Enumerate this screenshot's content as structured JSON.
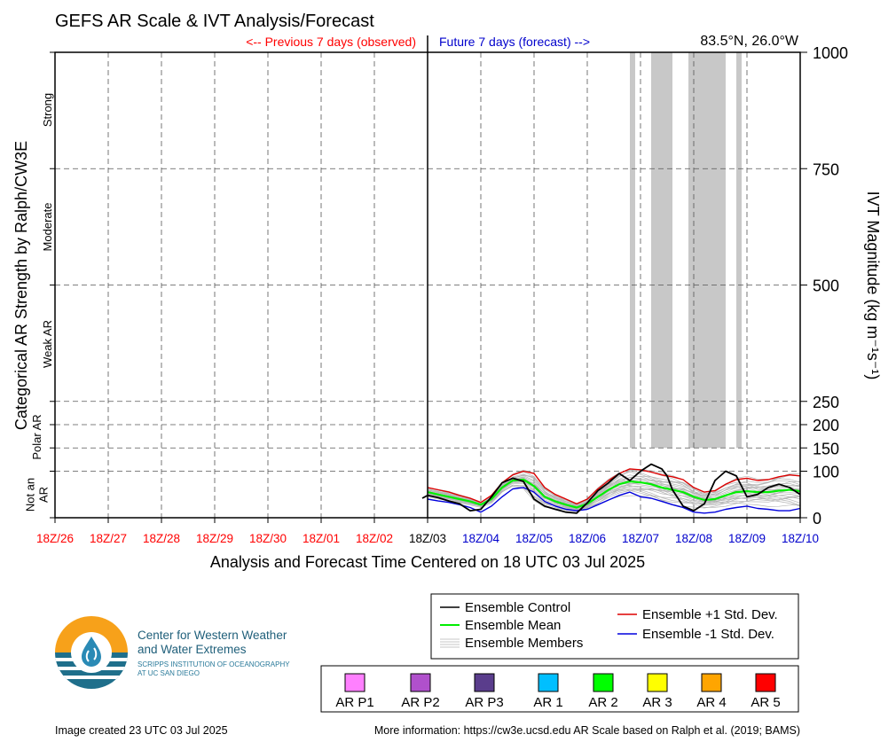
{
  "title": "GEFS AR Scale & IVT Analysis/Forecast",
  "previous_label": "<-- Previous 7 days (observed)",
  "future_label": "Future 7 days (forecast) -->",
  "location": "83.5°N, 26.0°W",
  "xlabel": "Analysis and Forecast Time Centered on 18 UTC 03 Jul 2025",
  "ylabel_left": "Categorical AR Strength by Ralph/CW3E",
  "ylabel_right": "IVT Magnitude (kg m⁻¹s⁻¹)",
  "category_labels": [
    "Strong",
    "Moderate",
    "Weak AR",
    "Polar AR",
    "Not an AR"
  ],
  "legend": {
    "control": "Ensemble Control",
    "mean": "Ensemble Mean",
    "members": "Ensemble Members",
    "plus_sd": "Ensemble +1 Std. Dev.",
    "minus_sd": "Ensemble -1 Std. Dev."
  },
  "ar_scale": [
    {
      "label": "AR P1",
      "color": "#ff80ff"
    },
    {
      "label": "AR P2",
      "color": "#b050cc"
    },
    {
      "label": "AR P3",
      "color": "#5a3d8c"
    },
    {
      "label": "AR 1",
      "color": "#00bfff"
    },
    {
      "label": "AR 2",
      "color": "#00ff00"
    },
    {
      "label": "AR 3",
      "color": "#ffff00"
    },
    {
      "label": "AR 4",
      "color": "#ffa500"
    },
    {
      "label": "AR 5",
      "color": "#ff0000"
    }
  ],
  "logo": {
    "line1": "Center for Western Weather",
    "line2": "and Water Extremes",
    "line3": "SCRIPPS INSTITUTION OF OCEANOGRAPHY",
    "line4": "AT UC SAN DIEGO"
  },
  "footer_left": "Image created 23 UTC 03 Jul 2025",
  "footer_right": "More information: https://cw3e.ucsd.edu AR Scale based on Ralph et al. (2019; BAMS)",
  "colors": {
    "control": "#000000",
    "mean": "#00ee00",
    "plus_sd": "#dd0000",
    "minus_sd": "#0000dd",
    "members": "#b4b4b4",
    "shading": "#c8c8c8",
    "observed_text": "#ff0000",
    "forecast_text": "#0000cc"
  },
  "chart_data": {
    "type": "line",
    "x_ticks": [
      "18Z/26",
      "18Z/27",
      "18Z/28",
      "18Z/29",
      "18Z/30",
      "18Z/01",
      "18Z/02",
      "18Z/03",
      "18Z/04",
      "18Z/05",
      "18Z/06",
      "18Z/07",
      "18Z/08",
      "18Z/09",
      "18Z/10"
    ],
    "y_ticks": [
      0,
      100,
      150,
      200,
      250,
      500,
      750,
      1000
    ],
    "ylim": [
      0,
      1000
    ],
    "xlim": [
      -7,
      7
    ],
    "grid": true,
    "x_unit": "days relative to 18Z/03",
    "series": [
      {
        "name": "Ensemble Control",
        "x": [
          -0.1,
          0,
          0.2,
          0.4,
          0.6,
          0.8,
          1.0,
          1.2,
          1.4,
          1.6,
          1.8,
          2.0,
          2.2,
          2.4,
          2.6,
          2.8,
          3.0,
          3.2,
          3.4,
          3.6,
          3.8,
          4.0,
          4.2,
          4.4,
          4.5,
          4.6,
          4.8,
          5.0,
          5.2,
          5.4,
          5.6,
          5.8,
          6.0,
          6.2,
          6.4,
          6.6,
          6.8,
          7.0
        ],
        "y": [
          42,
          48,
          43,
          36,
          30,
          15,
          18,
          45,
          75,
          85,
          78,
          40,
          25,
          18,
          12,
          10,
          32,
          58,
          75,
          95,
          80,
          100,
          115,
          105,
          90,
          60,
          25,
          15,
          30,
          80,
          100,
          90,
          45,
          50,
          65,
          72,
          65,
          50
        ]
      },
      {
        "name": "Ensemble Mean",
        "x": [
          0,
          0.2,
          0.4,
          0.6,
          0.8,
          1.0,
          1.2,
          1.4,
          1.6,
          1.8,
          2.0,
          2.2,
          2.4,
          2.6,
          2.8,
          3.0,
          3.2,
          3.4,
          3.6,
          3.8,
          4.0,
          4.2,
          4.4,
          4.6,
          4.8,
          5.0,
          5.2,
          5.4,
          5.6,
          5.8,
          6.0,
          6.2,
          6.4,
          6.6,
          6.8,
          7.0
        ],
        "y": [
          55,
          50,
          45,
          40,
          35,
          28,
          40,
          65,
          80,
          82,
          68,
          45,
          35,
          28,
          22,
          30,
          45,
          60,
          72,
          78,
          76,
          72,
          65,
          60,
          55,
          45,
          38,
          40,
          48,
          55,
          57,
          55,
          55,
          58,
          60,
          57
        ]
      },
      {
        "name": "Ensemble +1 Std. Dev.",
        "x": [
          0,
          0.2,
          0.4,
          0.6,
          0.8,
          1.0,
          1.2,
          1.4,
          1.6,
          1.8,
          2.0,
          2.2,
          2.4,
          2.6,
          2.8,
          3.0,
          3.2,
          3.4,
          3.6,
          3.8,
          4.0,
          4.2,
          4.4,
          4.6,
          4.8,
          5.0,
          5.2,
          5.4,
          5.6,
          5.8,
          6.0,
          6.2,
          6.4,
          6.6,
          6.8,
          7.0
        ],
        "y": [
          65,
          60,
          55,
          48,
          42,
          33,
          48,
          75,
          92,
          100,
          95,
          65,
          50,
          40,
          30,
          40,
          62,
          80,
          95,
          105,
          103,
          98,
          92,
          88,
          82,
          65,
          55,
          58,
          72,
          82,
          85,
          80,
          82,
          88,
          92,
          90
        ]
      },
      {
        "name": "Ensemble -1 Std. Dev.",
        "x": [
          0,
          0.2,
          0.4,
          0.6,
          0.8,
          1.0,
          1.2,
          1.4,
          1.6,
          1.8,
          2.0,
          2.2,
          2.4,
          2.6,
          2.8,
          3.0,
          3.2,
          3.4,
          3.6,
          3.8,
          4.0,
          4.2,
          4.4,
          4.6,
          4.8,
          5.0,
          5.2,
          5.4,
          5.6,
          5.8,
          6.0,
          6.2,
          6.4,
          6.6,
          6.8,
          7.0
        ],
        "y": [
          40,
          36,
          33,
          28,
          22,
          12,
          25,
          45,
          62,
          65,
          55,
          35,
          25,
          18,
          15,
          18,
          28,
          38,
          48,
          55,
          45,
          42,
          35,
          28,
          22,
          12,
          10,
          12,
          18,
          22,
          25,
          20,
          18,
          15,
          15,
          20
        ]
      }
    ],
    "shaded_periods": [
      [
        3.8,
        3.9
      ],
      [
        4.2,
        4.6
      ],
      [
        4.9,
        5.6
      ],
      [
        5.8,
        5.9
      ]
    ],
    "shaded_period_top": 1000
  }
}
